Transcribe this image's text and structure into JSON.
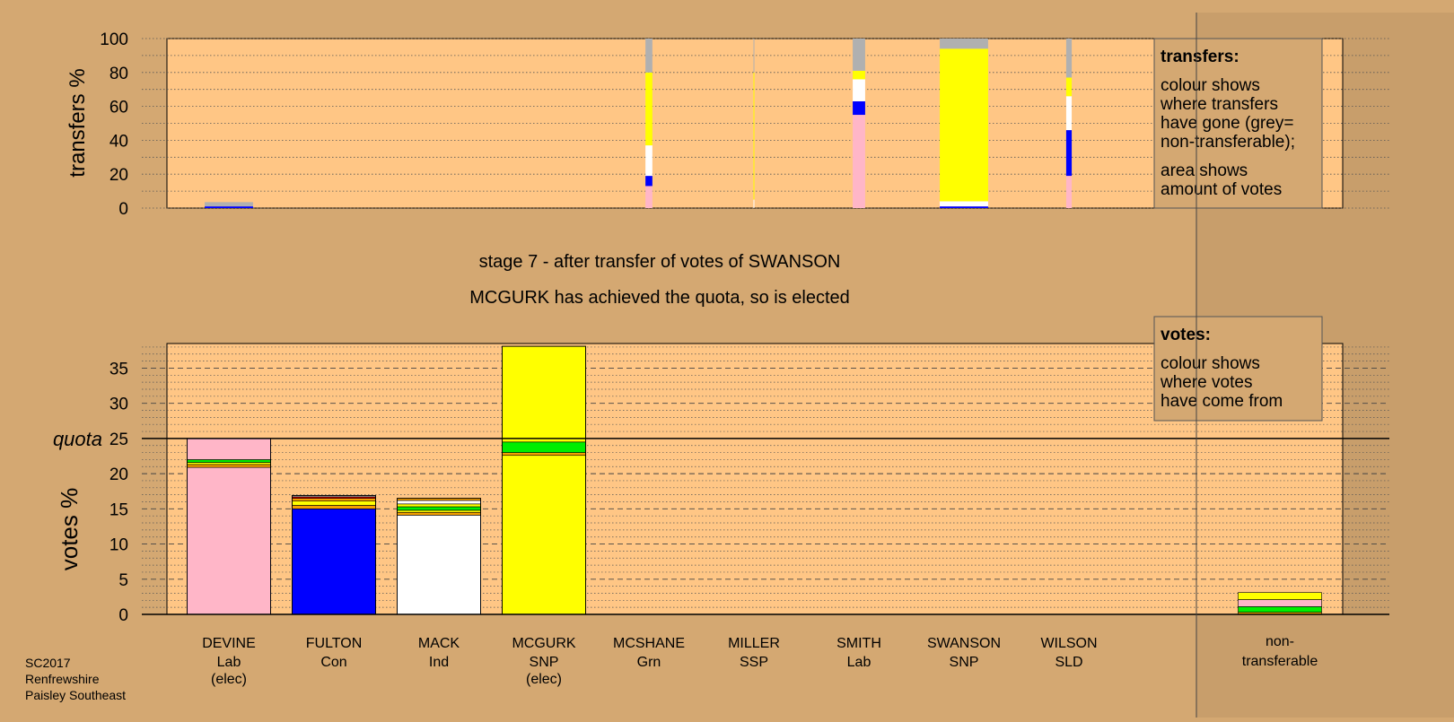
{
  "colors": {
    "background": "#d4a872",
    "plot_background": "#ffc685",
    "lab": "#ffb6c8",
    "con": "#0000ff",
    "ind": "#ffffff",
    "snp": "#ffff00",
    "grn": "#00ee00",
    "ssp": "#ff0000",
    "sld": "#f5a000",
    "nontransferable": "#b0b0b0"
  },
  "stage_title": "stage 7 - after transfer of votes of SWANSON",
  "stage_subtitle": "MCGURK has achieved the quota, so is elected",
  "footer": {
    "line1": "SC2017",
    "line2": "Renfrewshire",
    "line3": "Paisley Southeast"
  },
  "legend_transfers": {
    "title": "transfers:",
    "text1": [
      "colour shows",
      "where transfers",
      "have gone (grey=",
      "non-transferable);"
    ],
    "text2": [
      "area shows",
      "amount of votes"
    ]
  },
  "legend_votes": {
    "title": "votes:",
    "text1": [
      "colour shows",
      "where votes",
      "have come from"
    ]
  },
  "chart_data": [
    {
      "type": "bar",
      "name": "transfers",
      "ylabel": "transfers %",
      "ylim": [
        0,
        100
      ],
      "yticks": [
        0,
        20,
        40,
        60,
        80,
        100
      ],
      "note": "stacked bars; bar width proportional to amount of votes transferred",
      "bars": [
        {
          "category": "DEVINE",
          "width_units": 0.7,
          "segments": [
            [
              "con",
              1
            ],
            [
              "nontransferable",
              2.5
            ]
          ]
        },
        {
          "category": "MCSHANE",
          "width_units": 0.1,
          "segments": [
            [
              "lab",
              13
            ],
            [
              "con",
              6
            ],
            [
              "ind",
              18
            ],
            [
              "snp",
              43
            ],
            [
              "nontransferable",
              20
            ]
          ]
        },
        {
          "category": "MILLER",
          "width_units": 0.01,
          "segments": [
            [
              "ind",
              5
            ],
            [
              "snp",
              75
            ],
            [
              "nontransferable",
              20
            ]
          ]
        },
        {
          "category": "SMITH",
          "width_units": 0.18,
          "segments": [
            [
              "lab",
              55
            ],
            [
              "con",
              8
            ],
            [
              "ind",
              13
            ],
            [
              "snp",
              5
            ],
            [
              "nontransferable",
              19
            ]
          ]
        },
        {
          "category": "SWANSON",
          "width_units": 0.7,
          "segments": [
            [
              "con",
              1
            ],
            [
              "ind",
              3
            ],
            [
              "snp",
              90
            ],
            [
              "nontransferable",
              6
            ]
          ]
        },
        {
          "category": "WILSON",
          "width_units": 0.08,
          "segments": [
            [
              "lab",
              19
            ],
            [
              "con",
              27
            ],
            [
              "ind",
              20
            ],
            [
              "snp",
              11
            ],
            [
              "nontransferable",
              23
            ]
          ]
        }
      ]
    },
    {
      "type": "bar",
      "name": "votes",
      "ylabel": "votes %",
      "ylim": [
        0,
        38.5
      ],
      "yticks": [
        0,
        5,
        10,
        15,
        20,
        25,
        30,
        35
      ],
      "quota": 25,
      "quota_label": "quota",
      "categories": [
        {
          "name": "DEVINE",
          "party": "Lab",
          "note": "(elec)"
        },
        {
          "name": "FULTON",
          "party": "Con",
          "note": ""
        },
        {
          "name": "MACK",
          "party": "Ind",
          "note": ""
        },
        {
          "name": "MCGURK",
          "party": "SNP",
          "note": "(elec)"
        },
        {
          "name": "MCSHANE",
          "party": "Grn",
          "note": ""
        },
        {
          "name": "MILLER",
          "party": "SSP",
          "note": ""
        },
        {
          "name": "SMITH",
          "party": "Lab",
          "note": ""
        },
        {
          "name": "SWANSON",
          "party": "SNP",
          "note": ""
        },
        {
          "name": "WILSON",
          "party": "SLD",
          "note": ""
        }
      ],
      "extra_category": {
        "line1": "non-",
        "line2": "transferable"
      },
      "stacks": [
        [
          [
            "lab",
            20.9
          ],
          [
            "sld",
            0.4
          ],
          [
            "snp",
            0.3
          ],
          [
            "grn",
            0.4
          ],
          [
            "lab",
            3.0
          ]
        ],
        [
          [
            "con",
            15.0
          ],
          [
            "sld",
            0.5
          ],
          [
            "snp",
            0.6
          ],
          [
            "sld",
            0.4
          ],
          [
            "ssp",
            0.2
          ],
          [
            "nontransferable",
            0.2
          ]
        ],
        [
          [
            "ind",
            14.1
          ],
          [
            "sld",
            0.4
          ],
          [
            "snp",
            0.3
          ],
          [
            "grn",
            0.5
          ],
          [
            "snp",
            0.4
          ],
          [
            "ind",
            0.5
          ],
          [
            "sld",
            0.3
          ]
        ],
        [
          [
            "snp",
            22.6
          ],
          [
            "sld",
            0.4
          ],
          [
            "grn",
            1.5
          ],
          [
            "snp",
            13.6
          ]
        ],
        [],
        [],
        [],
        [],
        []
      ],
      "nontransferable_stack": [
        [
          "sld",
          0.3
        ],
        [
          "grn",
          0.8
        ],
        [
          "lab",
          1.0
        ],
        [
          "snp",
          1.0
        ]
      ]
    }
  ]
}
